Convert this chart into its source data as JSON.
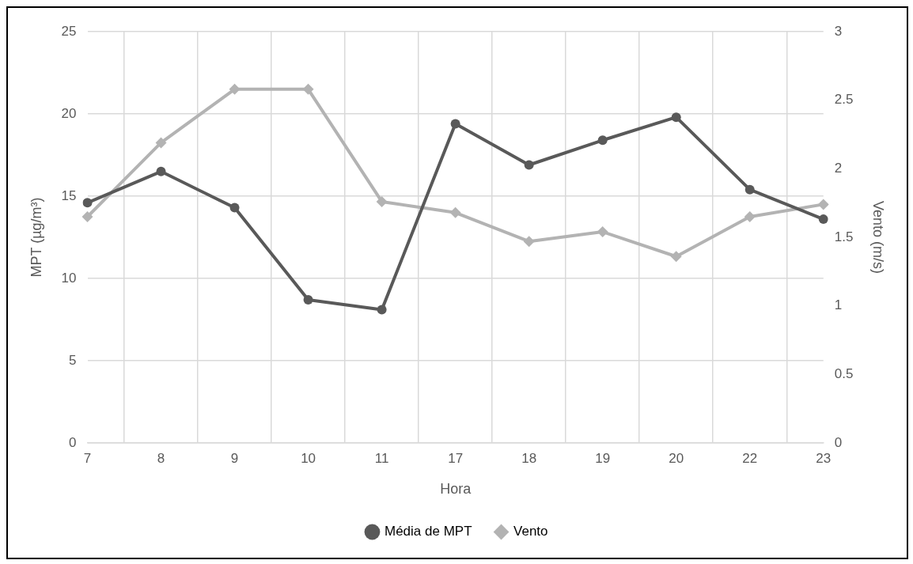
{
  "chart_data": {
    "type": "line",
    "xlabel": "Hora",
    "ylabel": "MPT (µg/m³)",
    "y2label": "Vento (m/s)",
    "categories": [
      "7",
      "8",
      "9",
      "10",
      "11",
      "17",
      "18",
      "19",
      "20",
      "22",
      "23"
    ],
    "series": [
      {
        "name": "Média de MPT",
        "color": "#595959",
        "marker": "circle",
        "values": [
          14.6,
          16.5,
          14.3,
          8.7,
          8.1,
          19.4,
          16.9,
          18.4,
          19.8,
          15.4,
          13.6
        ]
      },
      {
        "name": "Vento",
        "color": "#b3b3b3",
        "marker": "diamond",
        "axis": "y2",
        "values": [
          1.65,
          2.19,
          2.58,
          2.58,
          1.76,
          1.68,
          1.47,
          1.54,
          1.36,
          1.65,
          1.74
        ]
      }
    ],
    "ylim": [
      0,
      25
    ],
    "yticks": [
      0,
      5,
      10,
      15,
      20,
      25
    ],
    "y2lim": [
      0,
      3
    ],
    "y2ticks": [
      0,
      0.5,
      1,
      1.5,
      2,
      2.5,
      3
    ],
    "grid": true,
    "legend": "bottom"
  }
}
